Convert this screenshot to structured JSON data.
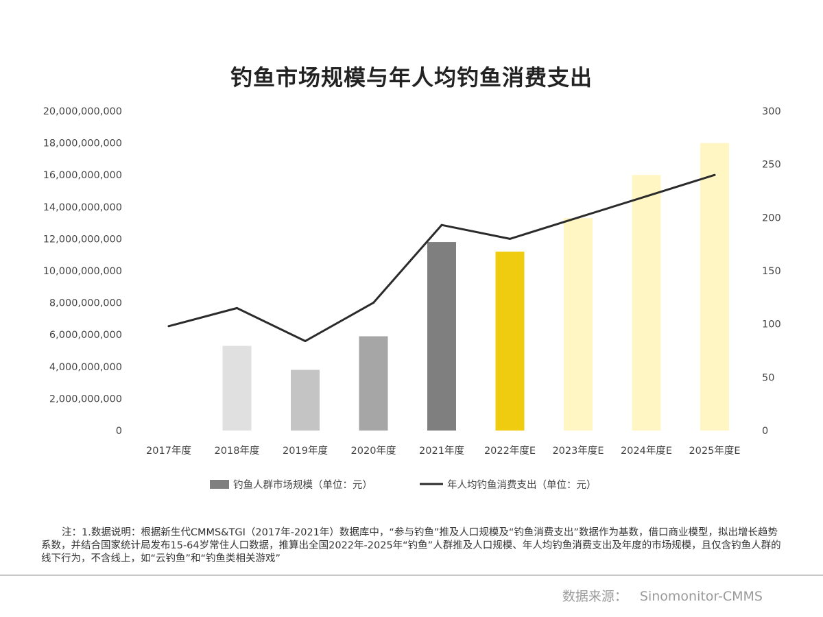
{
  "title": "钓鱼市场规模与年人均钓鱼消费支出",
  "colors": {
    "bar_2018": "#e0e0e0",
    "bar_2019": "#c4c4c4",
    "bar_2020": "#a6a6a6",
    "bar_2021": "#7f7f7f",
    "bar_2022": "#f0cc10",
    "bar_forecast": "#fff6c4",
    "line": "#2b2b2b",
    "axis_text": "#444444"
  },
  "chart_data": {
    "type": "bar",
    "title": "钓鱼市场规模与年人均钓鱼消费支出",
    "categories": [
      "2017年度",
      "2018年度",
      "2019年度",
      "2020年度",
      "2021年度",
      "2022年度E",
      "2023年度E",
      "2024年度E",
      "2025年度E"
    ],
    "series": [
      {
        "name": "钓鱼人群市场规模（单位：元）",
        "type": "bar",
        "axis": "left",
        "values": [
          null,
          5300000000,
          3800000000,
          5900000000,
          11800000000,
          11200000000,
          13300000000,
          16000000000,
          18000000000
        ]
      },
      {
        "name": "年人均钓鱼消费支出（单位：元）",
        "type": "line",
        "axis": "right",
        "values": [
          98,
          115,
          84,
          120,
          193,
          180,
          200,
          220,
          240
        ]
      }
    ],
    "ylim_left": [
      0,
      20000000000
    ],
    "yticks_left": [
      "0",
      "2,000,000,000",
      "4,000,000,000",
      "6,000,000,000",
      "8,000,000,000",
      "10,000,000,000",
      "12,000,000,000",
      "14,000,000,000",
      "16,000,000,000",
      "18,000,000,000",
      "20,000,000,000"
    ],
    "ylim_right": [
      0,
      300
    ],
    "yticks_right": [
      "0",
      "50",
      "100",
      "150",
      "200",
      "250",
      "300"
    ],
    "grid": false,
    "legend_position": "bottom"
  },
  "note": "注：1.数据说明：根据新生代CMMS&TGI（2017年-2021年）数据库中，“参与钓鱼”推及人口规模及“钓鱼消费支出”数据作为基数，借口商业模型，拟出增长趋势系数，并结合国家统计局发布15-64岁常住人口数据，推算出全国2022年-2025年“钓鱼”人群推及人口规模、年人均钓鱼消费支出及年度的市场规模，且仅含钓鱼人群的线下行为，不含线上，如“云钓鱼”和“钓鱼类相关游戏”",
  "source": {
    "label": "数据来源：",
    "value": "Sinomonitor-CMMS"
  }
}
